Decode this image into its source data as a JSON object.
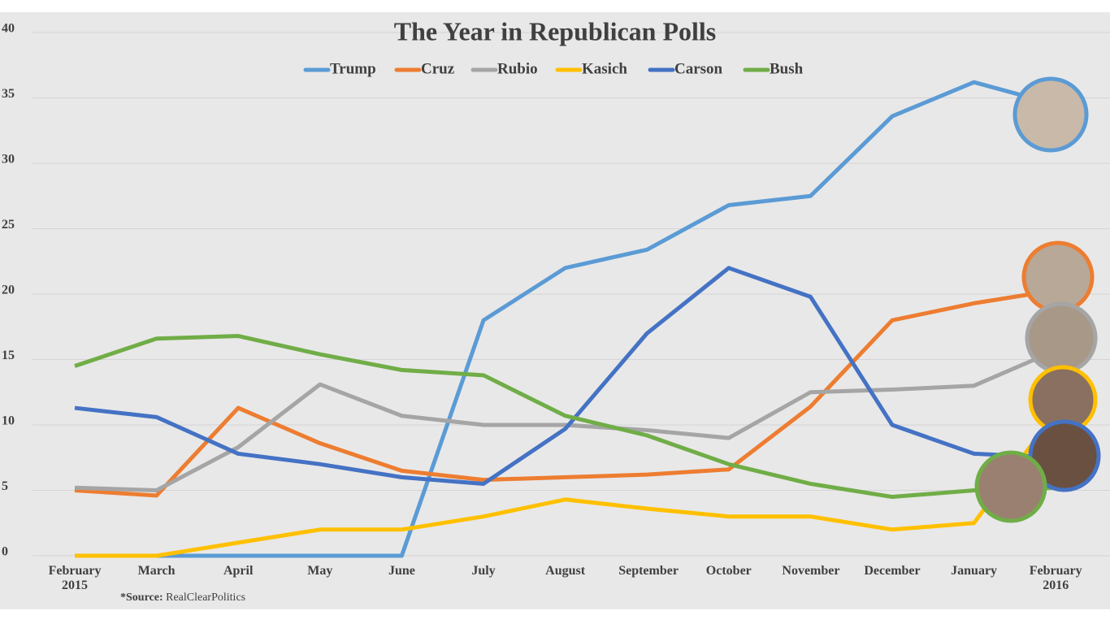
{
  "chart_data": {
    "type": "line",
    "title": "The Year in Republican Polls",
    "source_label": "*Source:",
    "source_text": "RealClearPolitics",
    "categories": [
      "February 2015",
      "March",
      "April",
      "May",
      "June",
      "July",
      "August",
      "September",
      "October",
      "November",
      "December",
      "January",
      "February 2016"
    ],
    "ylim": [
      0,
      40
    ],
    "yticks": [
      0,
      5,
      10,
      15,
      20,
      25,
      30,
      35,
      40
    ],
    "grid": true,
    "series": [
      {
        "name": "Trump",
        "color": "#5b9bd5",
        "values": [
          0,
          0,
          0,
          0,
          0,
          18,
          22,
          23.4,
          26.8,
          27.5,
          33.6,
          36.2,
          34.5
        ]
      },
      {
        "name": "Cruz",
        "color": "#ed7d31",
        "values": [
          5,
          4.6,
          11.3,
          8.6,
          6.5,
          5.8,
          6,
          6.2,
          6.6,
          11.4,
          18,
          19.3,
          20.3
        ]
      },
      {
        "name": "Rubio",
        "color": "#a5a5a5",
        "values": [
          5.2,
          5,
          8.3,
          13.1,
          10.7,
          10,
          10,
          9.6,
          9,
          12.5,
          12.7,
          13,
          15.7
        ]
      },
      {
        "name": "Kasich",
        "color": "#ffc000",
        "values": [
          0,
          0,
          1,
          2,
          2,
          3,
          4.3,
          3.6,
          3,
          3,
          2,
          2.5,
          11
        ]
      },
      {
        "name": "Carson",
        "color": "#4472c4",
        "values": [
          11.3,
          10.6,
          7.8,
          7,
          6,
          5.5,
          9.7,
          17,
          22,
          19.8,
          10,
          7.8,
          7.5
        ]
      },
      {
        "name": "Bush",
        "color": "#70ad47",
        "values": [
          14.5,
          16.6,
          16.8,
          15.4,
          14.2,
          13.8,
          10.7,
          9.2,
          7,
          5.5,
          4.5,
          5,
          5.2
        ]
      }
    ]
  }
}
